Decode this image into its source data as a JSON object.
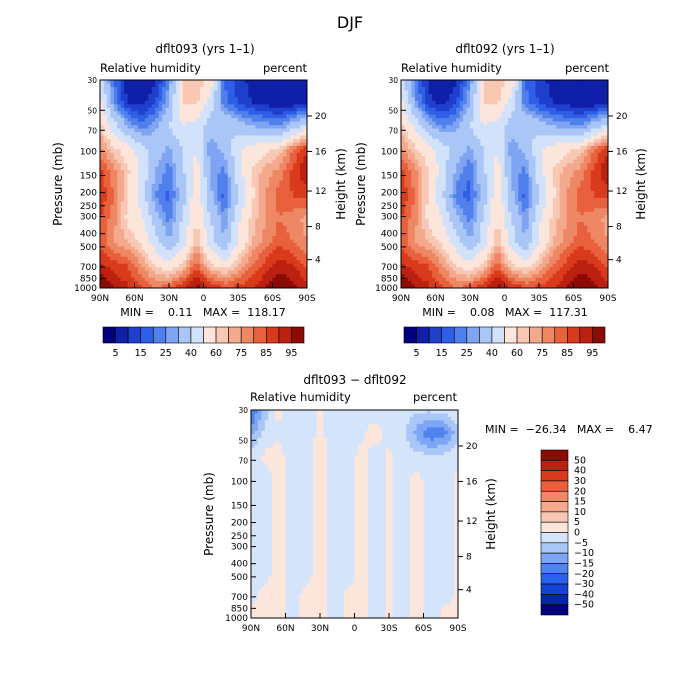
{
  "page_title": "DJF",
  "colors": {
    "abs_palette": [
      "#00007f",
      "#0f1fa8",
      "#1f3fcc",
      "#2f5fe6",
      "#5080ec",
      "#7ea4f2",
      "#aac6f7",
      "#d2e2fa",
      "#fce6dc",
      "#f8c8b4",
      "#f4a88c",
      "#ee8864",
      "#e8603c",
      "#d93a1c",
      "#bb2010",
      "#8c0b05"
    ],
    "diff_palette": [
      "#00007f",
      "#0626a8",
      "#1443d3",
      "#2a62ea",
      "#4f83f0",
      "#7da6f4",
      "#a9c7f8",
      "#d4e4fb",
      "#fce6dc",
      "#f8c8b4",
      "#f4a88c",
      "#ee8864",
      "#e8603c",
      "#d93a1c",
      "#bb2010",
      "#8c0b05"
    ]
  },
  "chart_data": [
    {
      "type": "heatmap",
      "title": "dflt093 (yrs 1–1)",
      "left_label": "Relative humidity",
      "right_label": "percent",
      "ylabel": "Pressure (mb)",
      "ylabel_right": "Height (km)",
      "x_ticks": [
        "90N",
        "60N",
        "30N",
        "0",
        "30S",
        "60S",
        "90S"
      ],
      "y_ticks": [
        "30",
        "50",
        "70",
        "100",
        "150",
        "200",
        "250",
        "300",
        "400",
        "500",
        "700",
        "850",
        "1000"
      ],
      "height_ticks": [
        "20",
        "16",
        "12",
        "8",
        "4"
      ],
      "stats": "MIN =    0.11   MAX =  118.17",
      "colorbar_labels": [
        "5",
        "15",
        "25",
        "40",
        "60",
        "75",
        "85",
        "95"
      ],
      "field": [
        [
          45,
          20,
          6,
          5,
          8,
          25,
          60,
          65,
          58,
          20,
          12,
          8,
          6,
          5,
          5,
          5
        ],
        [
          55,
          25,
          10,
          8,
          15,
          30,
          60,
          62,
          45,
          22,
          15,
          10,
          8,
          6,
          6,
          8
        ],
        [
          62,
          45,
          30,
          22,
          28,
          40,
          50,
          45,
          35,
          40,
          35,
          30,
          28,
          25,
          35,
          45
        ],
        [
          72,
          62,
          55,
          45,
          35,
          28,
          40,
          50,
          25,
          32,
          48,
          55,
          58,
          62,
          75,
          85
        ],
        [
          82,
          72,
          62,
          48,
          30,
          22,
          38,
          55,
          30,
          22,
          45,
          60,
          68,
          72,
          82,
          90
        ],
        [
          85,
          75,
          60,
          45,
          25,
          18,
          35,
          58,
          32,
          18,
          40,
          58,
          70,
          78,
          80,
          82
        ],
        [
          80,
          72,
          58,
          52,
          35,
          22,
          42,
          60,
          40,
          25,
          48,
          62,
          70,
          75,
          72,
          68
        ],
        [
          78,
          70,
          65,
          58,
          45,
          30,
          45,
          65,
          45,
          30,
          50,
          65,
          72,
          78,
          75,
          70
        ],
        [
          86,
          82,
          80,
          70,
          60,
          52,
          62,
          78,
          60,
          55,
          65,
          75,
          82,
          88,
          85,
          78
        ],
        [
          96,
          90,
          86,
          80,
          75,
          78,
          85,
          92,
          86,
          80,
          82,
          85,
          90,
          95,
          92,
          88
        ]
      ]
    },
    {
      "type": "heatmap",
      "title": "dflt092 (yrs 1–1)",
      "left_label": "Relative humidity",
      "right_label": "percent",
      "ylabel": "Pressure (mb)",
      "ylabel_right": "Height (km)",
      "x_ticks": [
        "90N",
        "60N",
        "30N",
        "0",
        "30S",
        "60S",
        "90S"
      ],
      "y_ticks": [
        "30",
        "50",
        "70",
        "100",
        "150",
        "200",
        "250",
        "300",
        "400",
        "500",
        "700",
        "850",
        "1000"
      ],
      "height_ticks": [
        "20",
        "16",
        "12",
        "8",
        "4"
      ],
      "stats": "MIN =    0.08   MAX =  117.31",
      "colorbar_labels": [
        "5",
        "15",
        "25",
        "40",
        "60",
        "75",
        "85",
        "95"
      ],
      "field": [
        [
          45,
          22,
          8,
          5,
          8,
          25,
          60,
          65,
          58,
          20,
          12,
          8,
          6,
          5,
          5,
          5
        ],
        [
          55,
          28,
          12,
          8,
          15,
          30,
          60,
          62,
          45,
          22,
          15,
          10,
          8,
          6,
          6,
          8
        ],
        [
          62,
          48,
          32,
          24,
          28,
          40,
          50,
          45,
          35,
          40,
          35,
          30,
          28,
          25,
          35,
          45
        ],
        [
          72,
          62,
          55,
          45,
          35,
          28,
          40,
          50,
          25,
          32,
          48,
          55,
          58,
          62,
          75,
          85
        ],
        [
          82,
          72,
          60,
          45,
          28,
          20,
          38,
          55,
          30,
          22,
          45,
          60,
          68,
          72,
          82,
          90
        ],
        [
          85,
          75,
          58,
          42,
          22,
          18,
          35,
          58,
          32,
          18,
          40,
          58,
          70,
          78,
          80,
          82
        ],
        [
          80,
          72,
          58,
          50,
          32,
          22,
          42,
          60,
          40,
          25,
          48,
          62,
          70,
          75,
          72,
          68
        ],
        [
          78,
          70,
          65,
          58,
          45,
          30,
          45,
          65,
          45,
          30,
          50,
          65,
          72,
          78,
          75,
          70
        ],
        [
          86,
          82,
          80,
          70,
          60,
          52,
          62,
          78,
          60,
          55,
          65,
          75,
          82,
          88,
          85,
          78
        ],
        [
          96,
          90,
          86,
          80,
          75,
          78,
          85,
          92,
          86,
          80,
          82,
          85,
          90,
          95,
          92,
          88
        ]
      ]
    },
    {
      "type": "heatmap",
      "title": "dflt093 − dflt092",
      "left_label": "Relative humidity",
      "right_label": "percent",
      "ylabel": "Pressure (mb)",
      "ylabel_right": "Height (km)",
      "x_ticks": [
        "90N",
        "60N",
        "30N",
        "0",
        "30S",
        "60S",
        "90S"
      ],
      "y_ticks": [
        "30",
        "50",
        "70",
        "100",
        "150",
        "200",
        "250",
        "300",
        "400",
        "500",
        "700",
        "850",
        "1000"
      ],
      "height_ticks": [
        "20",
        "16",
        "12",
        "8",
        "4"
      ],
      "stats": "MIN =  −26.34   MAX =    6.47",
      "colorbar_labels": [
        "50",
        "40",
        "30",
        "20",
        "15",
        "10",
        "5",
        "0",
        "−5",
        "−10",
        "−15",
        "−20",
        "−30",
        "−40",
        "−50"
      ],
      "field": [
        [
          -22,
          -8,
          2,
          -3,
          -2,
          1,
          -2,
          -3,
          -1,
          -2,
          -2,
          -3,
          -4,
          -4,
          -2,
          -1
        ],
        [
          -12,
          -3,
          -1,
          -3,
          -2,
          1,
          -2,
          -3,
          -1,
          2,
          -2,
          -3,
          -12,
          -20,
          -18,
          -6
        ],
        [
          -3,
          1,
          2,
          -3,
          -2,
          2,
          -2,
          -3,
          2,
          -2,
          1,
          -2,
          -3,
          -4,
          -3,
          -2
        ],
        [
          -3,
          -2,
          2,
          -3,
          -2,
          2,
          -2,
          -3,
          2,
          -2,
          1,
          -2,
          2,
          -3,
          -2,
          1
        ],
        [
          -3,
          -2,
          2,
          -3,
          -2,
          2,
          -3,
          -3,
          2,
          -2,
          1,
          -2,
          2,
          -3,
          -2,
          1
        ],
        [
          -3,
          -2,
          2,
          -3,
          -2,
          2,
          -3,
          -3,
          2,
          -2,
          1,
          -2,
          2,
          -3,
          -2,
          1
        ],
        [
          -3,
          -2,
          2,
          -3,
          -2,
          2,
          -3,
          -3,
          2,
          -2,
          1,
          -2,
          2,
          -3,
          -2,
          1
        ],
        [
          -3,
          -2,
          2,
          -3,
          -2,
          2,
          -3,
          -3,
          2,
          -2,
          1,
          -2,
          2,
          -3,
          -2,
          1
        ],
        [
          -2,
          2,
          2,
          -3,
          2,
          2,
          -3,
          1,
          2,
          -2,
          1,
          -2,
          2,
          -3,
          -2,
          1
        ],
        [
          2,
          2,
          2,
          -3,
          2,
          2,
          -3,
          1,
          2,
          -2,
          1,
          -2,
          2,
          -3,
          2,
          1
        ]
      ]
    }
  ]
}
